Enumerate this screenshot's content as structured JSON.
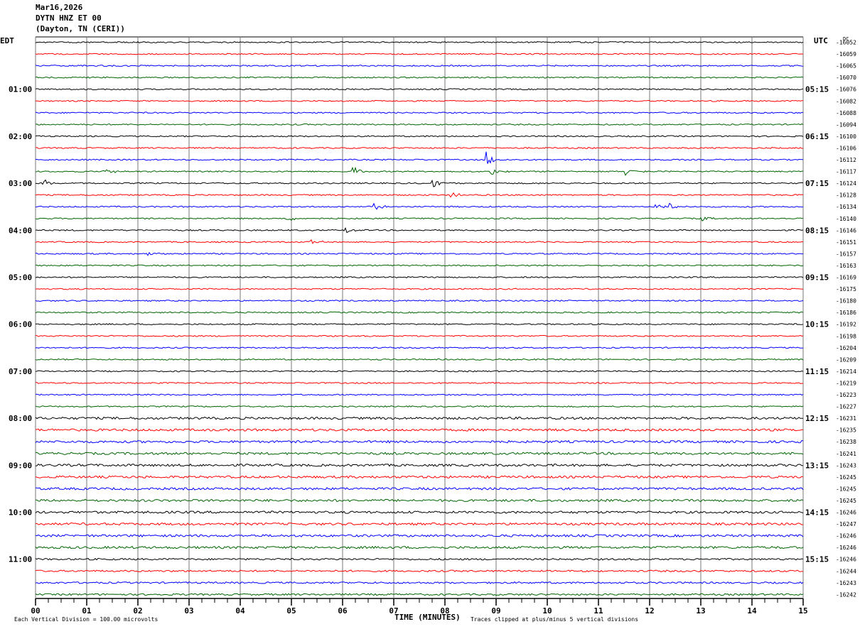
{
  "header": {
    "date": "Mar16,2026",
    "station": "DYTN HNZ ET 00",
    "location": "(Dayton, TN (CERI))"
  },
  "chart_data": {
    "type": "line",
    "left_zone": "EDT",
    "right_zone": "UTC",
    "dc_label": "DC",
    "xlabel": "TIME (MINUTES)",
    "x_ticks": [
      "00",
      "01",
      "02",
      "03",
      "04",
      "05",
      "06",
      "07",
      "08",
      "09",
      "10",
      "11",
      "12",
      "13",
      "14",
      "15"
    ],
    "xlim": [
      0,
      15
    ],
    "trace_interval_minutes": 15,
    "trace_colors": [
      "#000000",
      "#ff0000",
      "#0000ff",
      "#006400"
    ],
    "left_hour_labels": [
      "01:00",
      "02:00",
      "03:00",
      "04:00",
      "05:00",
      "06:00",
      "07:00",
      "08:00",
      "09:00",
      "10:00",
      "11:00"
    ],
    "right_hour_labels": [
      "05:15",
      "06:15",
      "07:15",
      "08:15",
      "09:15",
      "10:15",
      "11:15",
      "12:15",
      "13:15",
      "14:15",
      "15:15"
    ],
    "dc_offsets": [
      -16052,
      -16059,
      -16065,
      -16070,
      -16076,
      -16082,
      -16088,
      -16094,
      -16100,
      -16106,
      -16112,
      -16117,
      -16124,
      -16128,
      -16134,
      -16140,
      -16146,
      -16151,
      -16157,
      -16163,
      -16169,
      -16175,
      -16180,
      -16186,
      -16192,
      -16198,
      -16204,
      -16209,
      -16214,
      -16219,
      -16223,
      -16227,
      -16231,
      -16235,
      -16238,
      -16241,
      -16243,
      -16245,
      -16245,
      -16245,
      -16246,
      -16247,
      -16246,
      -16246,
      -16246,
      -16244,
      -16243,
      -16242
    ],
    "events": [
      {
        "trace": 10,
        "minute": 8.8,
        "amp": 14
      },
      {
        "trace": 11,
        "minute": 1.35,
        "amp": 8
      },
      {
        "trace": 11,
        "minute": 6.2,
        "amp": 9
      },
      {
        "trace": 11,
        "minute": 8.9,
        "amp": 7
      },
      {
        "trace": 11,
        "minute": 11.5,
        "amp": 7
      },
      {
        "trace": 12,
        "minute": 0.15,
        "amp": 8
      },
      {
        "trace": 12,
        "minute": 7.75,
        "amp": 7
      },
      {
        "trace": 13,
        "minute": 8.1,
        "amp": 6
      },
      {
        "trace": 14,
        "minute": 6.6,
        "amp": 6
      },
      {
        "trace": 14,
        "minute": 12.1,
        "amp": 4
      },
      {
        "trace": 14,
        "minute": 12.4,
        "amp": 5
      },
      {
        "trace": 15,
        "minute": 4.9,
        "amp": 5
      },
      {
        "trace": 15,
        "minute": 13.0,
        "amp": 4
      },
      {
        "trace": 16,
        "minute": 6.05,
        "amp": 6
      },
      {
        "trace": 17,
        "minute": 5.35,
        "amp": 5
      },
      {
        "trace": 18,
        "minute": 2.2,
        "amp": 3
      }
    ]
  },
  "footer": {
    "scale": "Each Vertical Division =  100.00 microvolts",
    "clip": "Traces clipped at plus/minus 5 vertical divisions"
  }
}
